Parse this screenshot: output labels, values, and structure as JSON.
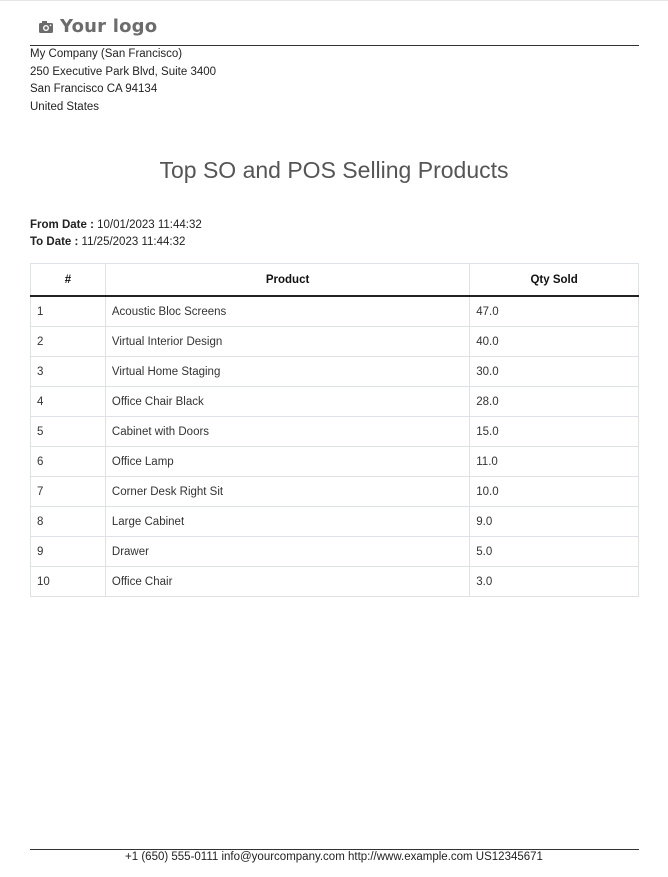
{
  "logo": {
    "text": "Your logo",
    "icon": "camera-icon"
  },
  "company": {
    "lines": [
      "My Company (San Francisco)",
      "250 Executive Park Blvd, Suite 3400",
      "San Francisco CA 94134",
      "United States"
    ]
  },
  "report": {
    "title": "Top SO and POS Selling Products",
    "from_label": "From Date :",
    "from_value": "10/01/2023 11:44:32",
    "to_label": "To Date :",
    "to_value": "11/25/2023 11:44:32"
  },
  "table": {
    "headers": [
      "#",
      "Product",
      "Qty Sold"
    ],
    "rows": [
      {
        "no": "1",
        "product": "Acoustic Bloc Screens",
        "qty": "47.0"
      },
      {
        "no": "2",
        "product": "Virtual Interior Design",
        "qty": "40.0"
      },
      {
        "no": "3",
        "product": "Virtual Home Staging",
        "qty": "30.0"
      },
      {
        "no": "4",
        "product": "Office Chair Black",
        "qty": "28.0"
      },
      {
        "no": "5",
        "product": "Cabinet with Doors",
        "qty": "15.0"
      },
      {
        "no": "6",
        "product": "Office Lamp",
        "qty": "11.0"
      },
      {
        "no": "7",
        "product": "Corner Desk Right Sit",
        "qty": "10.0"
      },
      {
        "no": "8",
        "product": "Large Cabinet",
        "qty": "9.0"
      },
      {
        "no": "9",
        "product": "Drawer",
        "qty": "5.0"
      },
      {
        "no": "10",
        "product": "Office Chair",
        "qty": "3.0"
      }
    ]
  },
  "footer": {
    "text": "+1 (650) 555-0111 info@yourcompany.com http://www.example.com US12345671"
  }
}
